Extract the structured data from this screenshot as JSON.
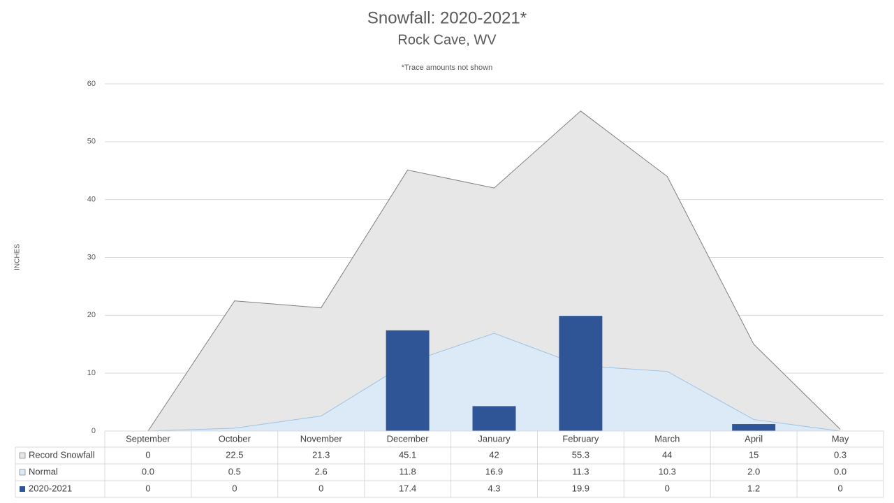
{
  "chart_data": {
    "type": "combo",
    "title": "Snowfall: 2020-2021*",
    "subtitle": "Rock Cave, WV",
    "note": "*Trace amounts not shown",
    "y_label": "INCHES",
    "categories": [
      "September",
      "October",
      "November",
      "December",
      "January",
      "February",
      "March",
      "April",
      "May"
    ],
    "series": [
      {
        "name": "Record Snowfall",
        "type": "area",
        "color": "#e7e7e7",
        "line_color": "#7f7f7f",
        "values": [
          0,
          22.5,
          21.3,
          45.1,
          42,
          55.3,
          44,
          15,
          0.3
        ]
      },
      {
        "name": "Normal",
        "type": "area",
        "color": "#dce9f6",
        "line_color": "#9dc3e6",
        "values": [
          0,
          0.5,
          2.6,
          11.8,
          16.9,
          11.3,
          10.3,
          2,
          0
        ],
        "value_labels": [
          "0.0",
          "0.5",
          "2.6",
          "11.8",
          "16.9",
          "11.3",
          "10.3",
          "2.0",
          "0.0"
        ]
      },
      {
        "name": "2020-2021",
        "type": "bar",
        "color": "#2f5597",
        "values": [
          0,
          0,
          0,
          17.4,
          4.3,
          19.9,
          0,
          1.2,
          0
        ]
      }
    ],
    "ylim": [
      0,
      60
    ],
    "yticks": [
      0,
      10,
      20,
      30,
      40,
      50,
      60
    ],
    "grid": true
  }
}
